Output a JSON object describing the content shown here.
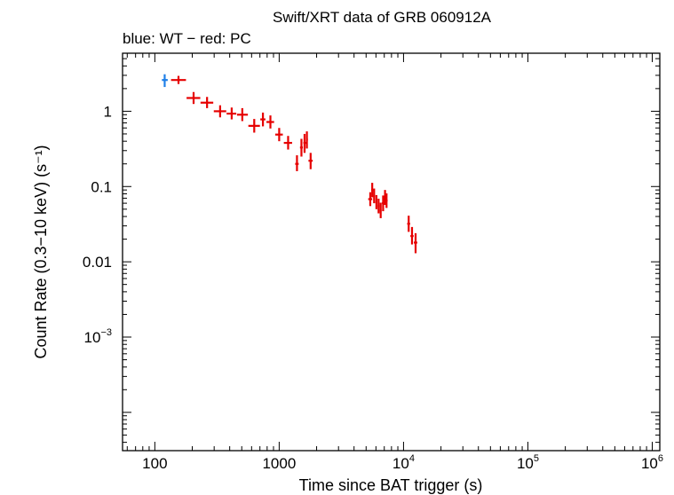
{
  "chart_data": {
    "type": "scatter",
    "title": "Swift/XRT data of GRB 060912A",
    "subtitle": "blue: WT − red: PC",
    "xlabel": "Time since BAT trigger (s)",
    "ylabel": "Count Rate (0.3−10 keV) (s⁻¹)",
    "xscale": "log",
    "yscale": "log",
    "xlim": [
      55,
      1150000
    ],
    "ylim": [
      3.1e-05,
      5.9
    ],
    "x_tick_labels": [
      {
        "value": 100,
        "base": "100",
        "exp": ""
      },
      {
        "value": 1000,
        "base": "1000",
        "exp": ""
      },
      {
        "value": 10000,
        "base": "10",
        "exp": "4"
      },
      {
        "value": 100000,
        "base": "10",
        "exp": "5"
      },
      {
        "value": 1000000,
        "base": "10",
        "exp": "6"
      }
    ],
    "y_tick_labels": [
      {
        "value": 1,
        "base": "1",
        "exp": ""
      },
      {
        "value": 0.1,
        "base": "0.1",
        "exp": ""
      },
      {
        "value": 0.01,
        "base": "0.01",
        "exp": ""
      },
      {
        "value": 0.001,
        "base": "10",
        "exp": "−3"
      }
    ],
    "series": [
      {
        "name": "WT",
        "color": "#1f7fe8",
        "points": [
          {
            "x": 120,
            "y": 2.6,
            "xlo": 114,
            "xhi": 127,
            "ylo": 2.1,
            "yhi": 3.1
          }
        ]
      },
      {
        "name": "PC",
        "color": "#e60000",
        "points": [
          {
            "x": 155,
            "y": 2.6,
            "xlo": 135,
            "xhi": 178,
            "ylo": 2.3,
            "yhi": 2.95
          },
          {
            "x": 205,
            "y": 1.5,
            "xlo": 180,
            "xhi": 232,
            "ylo": 1.25,
            "yhi": 1.8
          },
          {
            "x": 263,
            "y": 1.3,
            "xlo": 233,
            "xhi": 295,
            "ylo": 1.1,
            "yhi": 1.55
          },
          {
            "x": 335,
            "y": 1.0,
            "xlo": 298,
            "xhi": 375,
            "ylo": 0.83,
            "yhi": 1.2
          },
          {
            "x": 415,
            "y": 0.93,
            "xlo": 378,
            "xhi": 452,
            "ylo": 0.78,
            "yhi": 1.12
          },
          {
            "x": 505,
            "y": 0.9,
            "xlo": 458,
            "xhi": 560,
            "ylo": 0.74,
            "yhi": 1.1
          },
          {
            "x": 630,
            "y": 0.64,
            "xlo": 565,
            "xhi": 700,
            "ylo": 0.52,
            "yhi": 0.79
          },
          {
            "x": 740,
            "y": 0.78,
            "xlo": 705,
            "xhi": 775,
            "ylo": 0.63,
            "yhi": 0.96
          },
          {
            "x": 850,
            "y": 0.72,
            "xlo": 790,
            "xhi": 910,
            "ylo": 0.59,
            "yhi": 0.88
          },
          {
            "x": 1000,
            "y": 0.49,
            "xlo": 930,
            "xhi": 1070,
            "ylo": 0.4,
            "yhi": 0.6
          },
          {
            "x": 1180,
            "y": 0.38,
            "xlo": 1090,
            "xhi": 1270,
            "ylo": 0.31,
            "yhi": 0.47
          },
          {
            "x": 1390,
            "y": 0.2,
            "xlo": 1345,
            "xhi": 1435,
            "ylo": 0.16,
            "yhi": 0.26
          },
          {
            "x": 1510,
            "y": 0.33,
            "xlo": 1470,
            "xhi": 1550,
            "ylo": 0.25,
            "yhi": 0.43
          },
          {
            "x": 1600,
            "y": 0.38,
            "xlo": 1565,
            "xhi": 1640,
            "ylo": 0.28,
            "yhi": 0.5
          },
          {
            "x": 1670,
            "y": 0.42,
            "xlo": 1645,
            "xhi": 1700,
            "ylo": 0.32,
            "yhi": 0.54
          },
          {
            "x": 1790,
            "y": 0.22,
            "xlo": 1720,
            "xhi": 1860,
            "ylo": 0.17,
            "yhi": 0.28
          },
          {
            "x": 5400,
            "y": 0.068,
            "xlo": 5200,
            "xhi": 5600,
            "ylo": 0.055,
            "yhi": 0.084
          },
          {
            "x": 5600,
            "y": 0.09,
            "xlo": 5500,
            "xhi": 5700,
            "ylo": 0.072,
            "yhi": 0.112
          },
          {
            "x": 5800,
            "y": 0.075,
            "xlo": 5700,
            "xhi": 5900,
            "ylo": 0.06,
            "yhi": 0.094
          },
          {
            "x": 6050,
            "y": 0.062,
            "xlo": 5950,
            "xhi": 6150,
            "ylo": 0.05,
            "yhi": 0.077
          },
          {
            "x": 6300,
            "y": 0.055,
            "xlo": 6200,
            "xhi": 6400,
            "ylo": 0.044,
            "yhi": 0.069
          },
          {
            "x": 6550,
            "y": 0.048,
            "xlo": 6450,
            "xhi": 6650,
            "ylo": 0.038,
            "yhi": 0.061
          },
          {
            "x": 6850,
            "y": 0.06,
            "xlo": 6700,
            "xhi": 7000,
            "ylo": 0.047,
            "yhi": 0.076
          },
          {
            "x": 7100,
            "y": 0.072,
            "xlo": 7000,
            "xhi": 7250,
            "ylo": 0.057,
            "yhi": 0.09
          },
          {
            "x": 7300,
            "y": 0.065,
            "xlo": 7150,
            "xhi": 7450,
            "ylo": 0.052,
            "yhi": 0.081
          },
          {
            "x": 11000,
            "y": 0.032,
            "xlo": 10700,
            "xhi": 11300,
            "ylo": 0.025,
            "yhi": 0.041
          },
          {
            "x": 11700,
            "y": 0.022,
            "xlo": 11350,
            "xhi": 12050,
            "ylo": 0.017,
            "yhi": 0.029
          },
          {
            "x": 12500,
            "y": 0.018,
            "xlo": 12100,
            "xhi": 12900,
            "ylo": 0.013,
            "yhi": 0.024
          }
        ]
      }
    ]
  }
}
